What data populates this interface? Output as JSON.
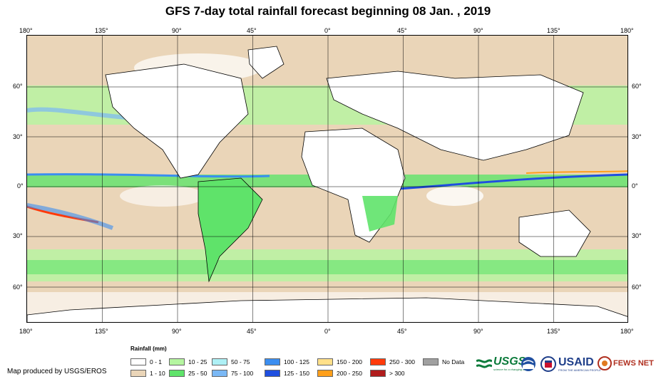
{
  "title": "GFS 7-day total rainfall forecast beginning 08 Jan. , 2019",
  "map": {
    "lon_labels": [
      "180°",
      "135°",
      "90°",
      "45°",
      "0°",
      "45°",
      "90°",
      "135°",
      "180°"
    ],
    "lat_labels": [
      "60°",
      "30°",
      "0°",
      "30°",
      "60°"
    ]
  },
  "legend": {
    "title": "Rainfall (mm)",
    "items": [
      {
        "label": "0 - 1",
        "color": "#ffffff"
      },
      {
        "label": "1 - 10",
        "color": "#ead5b8"
      },
      {
        "label": "10 - 25",
        "color": "#b5f5a0"
      },
      {
        "label": "25 - 50",
        "color": "#5fe36a"
      },
      {
        "label": "50 - 75",
        "color": "#aef0f5"
      },
      {
        "label": "75 - 100",
        "color": "#7ab8f5"
      },
      {
        "label": "100 - 125",
        "color": "#3b8ef0"
      },
      {
        "label": "125 - 150",
        "color": "#1f4fe0"
      },
      {
        "label": "150 - 200",
        "color": "#ffe08a"
      },
      {
        "label": "200 - 250",
        "color": "#ff9f1a"
      },
      {
        "label": "250 - 300",
        "color": "#ff3a0a"
      },
      {
        "label": "> 300",
        "color": "#b01c1c"
      },
      {
        "label": "No Data",
        "color": "#a0a0a0"
      }
    ]
  },
  "credit": "Map produced by USGS/EROS",
  "logos": {
    "usgs": "USGS",
    "usgs_tagline": "science for a changing world",
    "usaid": "USAID",
    "usaid_tagline": "FROM THE AMERICAN PEOPLE",
    "fewsnet": "FEWS NET"
  }
}
